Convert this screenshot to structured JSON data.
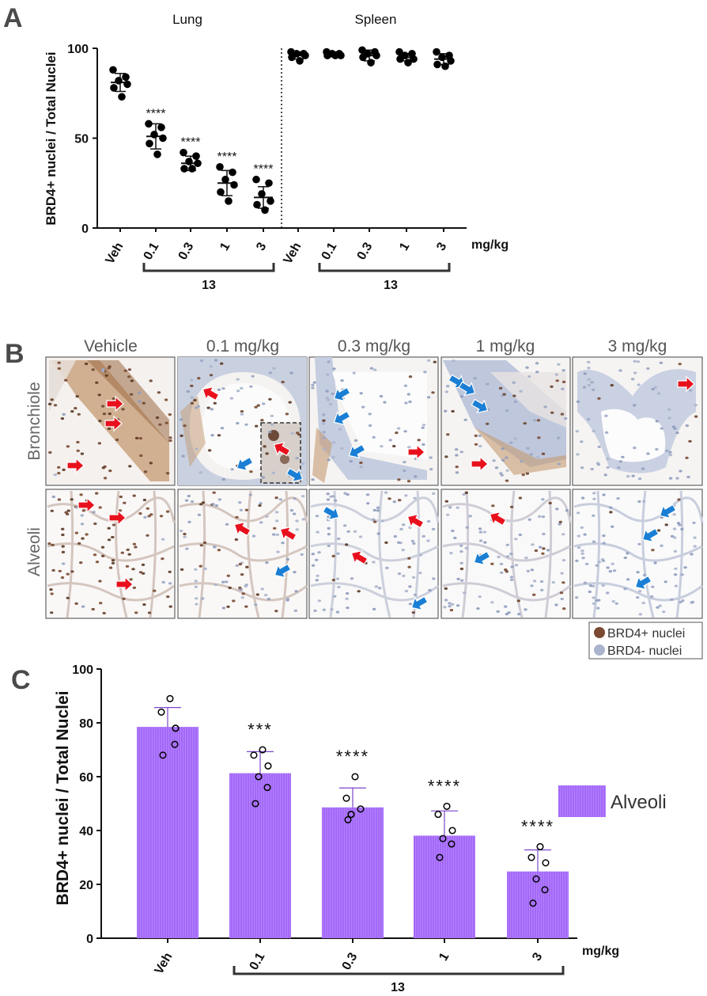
{
  "panel_labels": {
    "a": "A",
    "b": "B",
    "c": "C"
  },
  "doses": [
    "Veh",
    "0.1",
    "0.3",
    "1",
    "3"
  ],
  "unit": "mg/kg",
  "compound": "13",
  "chart_data": [
    {
      "panel": "A",
      "type": "scatter",
      "ylabel": "BRD4+ nuclei / Total Nuclei",
      "ylim": [
        0,
        100
      ],
      "yticks": [
        0,
        50,
        100
      ],
      "groups": [
        {
          "name": "Lung",
          "categories": [
            "Veh",
            "0.1",
            "0.3",
            "1",
            "3"
          ],
          "points": [
            [
              88,
              84,
              82,
              80,
              78,
              73
            ],
            [
              58,
              56,
              52,
              50,
              47,
              41
            ],
            [
              42,
              40,
              37,
              36,
              33,
              33
            ],
            [
              34,
              31,
              27,
              24,
              20,
              15
            ],
            [
              27,
              25,
              19,
              15,
              13,
              10
            ]
          ],
          "mean": [
            81,
            51,
            36,
            25,
            17
          ],
          "sd": [
            5,
            7,
            4,
            7,
            6
          ],
          "significance": [
            "",
            "****",
            "****",
            "****",
            "****"
          ]
        },
        {
          "name": "Spleen",
          "categories": [
            "Veh",
            "0.1",
            "0.3",
            "1",
            "3"
          ],
          "points": [
            [
              98,
              97,
              97,
              96,
              95,
              93
            ],
            [
              98,
              97,
              97,
              96,
              96,
              96
            ],
            [
              99,
              98,
              97,
              96,
              95,
              92
            ],
            [
              98,
              97,
              96,
              94,
              94,
              92
            ],
            [
              98,
              96,
              95,
              93,
              91,
              90
            ]
          ],
          "mean": [
            96,
            97,
            96,
            95,
            94
          ],
          "sd": [
            2,
            1,
            3,
            2,
            3
          ],
          "significance": [
            "",
            "",
            "",
            "",
            ""
          ]
        }
      ]
    },
    {
      "panel": "C",
      "type": "bar",
      "categories": [
        "Veh",
        "0.1",
        "0.3",
        "1",
        "3"
      ],
      "series": [
        {
          "name": "Alveoli",
          "values": [
            78.5,
            61.3,
            48.6,
            38.1,
            24.8
          ],
          "sd": [
            7.2,
            8,
            7.2,
            9.2,
            8
          ],
          "points": [
            [
              89,
              84,
              78,
              78,
              72,
              68
            ],
            [
              70,
              68,
              64,
              60,
              56,
              50
            ],
            [
              60,
              52,
              48,
              46,
              46,
              44
            ],
            [
              49,
              46,
              40,
              37,
              35,
              30
            ],
            [
              34,
              30,
              28,
              22,
              18,
              13
            ]
          ]
        }
      ],
      "ylabel": "BRD4+ nuclei / Total Nuclei",
      "ylim": [
        0,
        100
      ],
      "yticks": [
        0,
        20,
        40,
        60,
        80,
        100
      ],
      "significance": [
        "",
        "***",
        "****",
        "****",
        "****"
      ],
      "colors": {
        "bar": "#a369f6",
        "bar_stripe": "#b380ff",
        "error": "#7b45c9"
      }
    }
  ],
  "histology": {
    "columns": [
      "Vehicle",
      "0.1 mg/kg",
      "0.3 mg/kg",
      "1 mg/kg",
      "3 mg/kg"
    ],
    "rows": [
      "Bronchiole",
      "Alveoli"
    ],
    "legend": [
      {
        "label": "BRD4+ nuclei",
        "color": "#7a4a32"
      },
      {
        "label": "BRD4- nuclei",
        "color": "#aab4cc"
      }
    ],
    "arrow_colors": {
      "positive": "#e8101c",
      "negative": "#1a7fd4"
    }
  }
}
